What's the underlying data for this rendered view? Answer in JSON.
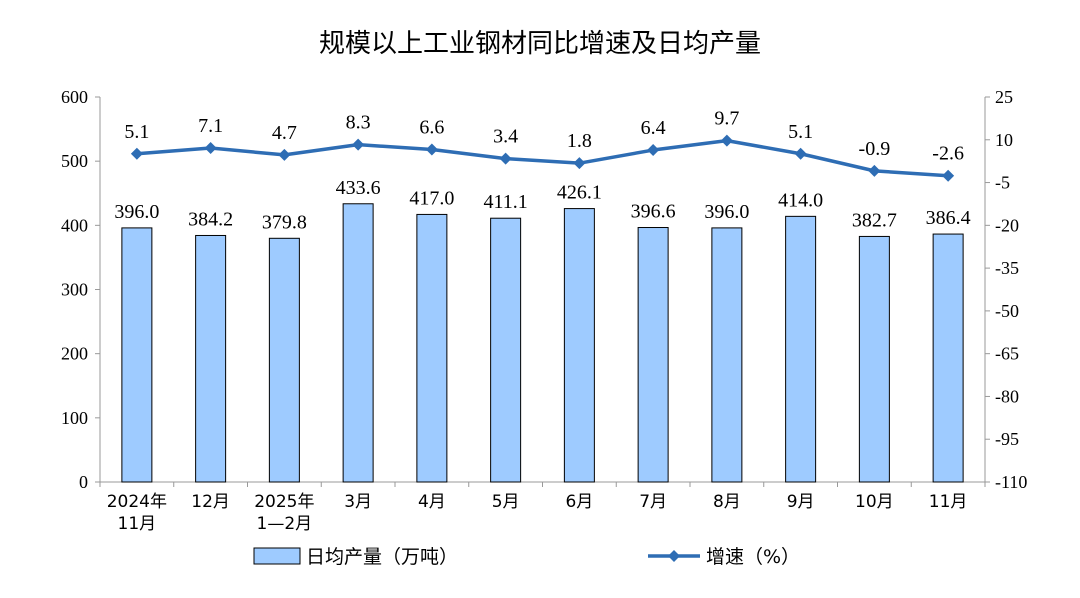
{
  "chart_data": {
    "type": "bar+line",
    "title": "规模以上工业钢材同比增速及日均产量",
    "categories": [
      [
        "2024年",
        "11月"
      ],
      [
        "12月"
      ],
      [
        "2025年",
        "1—2月"
      ],
      [
        "3月"
      ],
      [
        "4月"
      ],
      [
        "5月"
      ],
      [
        "6月"
      ],
      [
        "7月"
      ],
      [
        "8月"
      ],
      [
        "9月"
      ],
      [
        "10月"
      ],
      [
        "11月"
      ]
    ],
    "series": [
      {
        "name": "日均产量（万吨）",
        "type": "bar",
        "axis": "left",
        "color": "#9ecbff",
        "values": [
          396.0,
          384.2,
          379.8,
          433.6,
          417.0,
          411.1,
          426.1,
          396.6,
          396.0,
          414.0,
          382.7,
          386.4
        ],
        "labels": [
          "396.0",
          "384.2",
          "379.8",
          "433.6",
          "417.0",
          "411.1",
          "426.1",
          "396.6",
          "396.0",
          "414.0",
          "382.7",
          "386.4"
        ]
      },
      {
        "name": "增速（%）",
        "type": "line",
        "axis": "right",
        "color": "#2e6db4",
        "values": [
          5.1,
          7.1,
          4.7,
          8.3,
          6.6,
          3.4,
          1.8,
          6.4,
          9.7,
          5.1,
          -0.9,
          -2.6
        ],
        "labels": [
          "5.1",
          "7.1",
          "4.7",
          "8.3",
          "6.6",
          "3.4",
          "1.8",
          "6.4",
          "9.7",
          "5.1",
          "-0.9",
          "-2.6"
        ]
      }
    ],
    "y_left": {
      "min": 0,
      "max": 600,
      "ticks": [
        "0",
        "100",
        "200",
        "300",
        "400",
        "500",
        "600"
      ]
    },
    "y_right": {
      "min": -110,
      "max": 25,
      "ticks": [
        "25",
        "10",
        "-5",
        "-20",
        "-35",
        "-50",
        "-65",
        "-80",
        "-95",
        "-110"
      ]
    },
    "legend": {
      "position": "bottom",
      "bar_label": "日均产量（万吨）",
      "line_label": "增速（%）"
    },
    "grid": false
  }
}
